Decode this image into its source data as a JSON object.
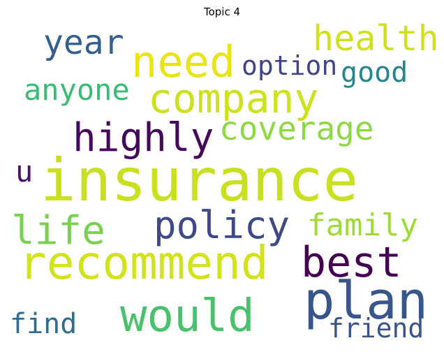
{
  "title": "Topic 4",
  "words": [
    {
      "text": "insurance",
      "color": "#c8e020"
    },
    {
      "text": "recommend",
      "color": "#d2e21b"
    },
    {
      "text": "company",
      "color": "#cde11d"
    },
    {
      "text": "need",
      "color": "#e7e419"
    },
    {
      "text": "would",
      "color": "#4ac16d"
    },
    {
      "text": "plan",
      "color": "#39568c"
    },
    {
      "text": "best",
      "color": "#440154"
    },
    {
      "text": "policy",
      "color": "#3e4989"
    },
    {
      "text": "health",
      "color": "#d0e11c"
    },
    {
      "text": "coverage",
      "color": "#8fd744"
    },
    {
      "text": "highly",
      "color": "#46085c"
    },
    {
      "text": "life",
      "color": "#7ad151"
    },
    {
      "text": "year",
      "color": "#355f8d"
    },
    {
      "text": "family",
      "color": "#a0da39"
    },
    {
      "text": "anyone",
      "color": "#3bbb75"
    },
    {
      "text": "option",
      "color": "#414487"
    },
    {
      "text": "good",
      "color": "#25858e"
    },
    {
      "text": "friend",
      "color": "#3b528b"
    },
    {
      "text": "find",
      "color": "#2f6c8e"
    },
    {
      "text": "u",
      "color": "#471365"
    }
  ]
}
